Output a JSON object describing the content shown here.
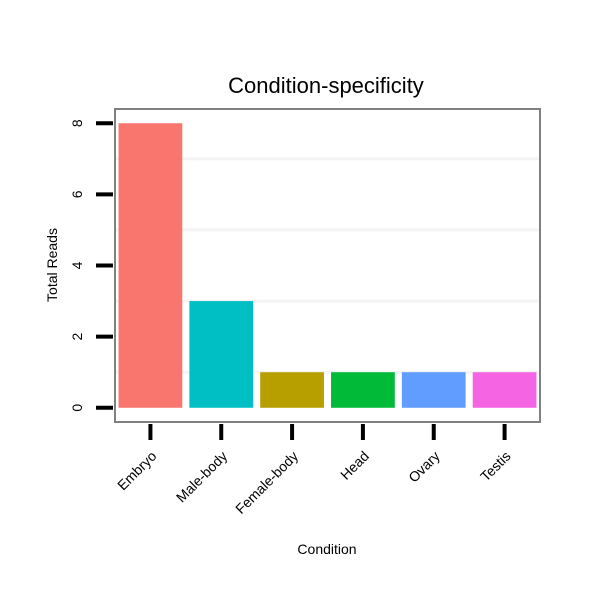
{
  "chart_data": {
    "type": "bar",
    "title": "Condition-specificity",
    "xlabel": "Condition",
    "ylabel": "Total Reads",
    "categories": [
      "Embryo",
      "Male-body",
      "Female-body",
      "Head",
      "Ovary",
      "Testis"
    ],
    "values": [
      8,
      3,
      1,
      1,
      1,
      1
    ],
    "colors": [
      "#F8766D",
      "#00BFC4",
      "#B79F00",
      "#00BA38",
      "#619CFF",
      "#F564E3"
    ],
    "yticks": [
      0,
      2,
      4,
      6,
      8
    ],
    "ylim": [
      -0.4,
      8.4
    ],
    "grid": true,
    "legend": "none"
  }
}
